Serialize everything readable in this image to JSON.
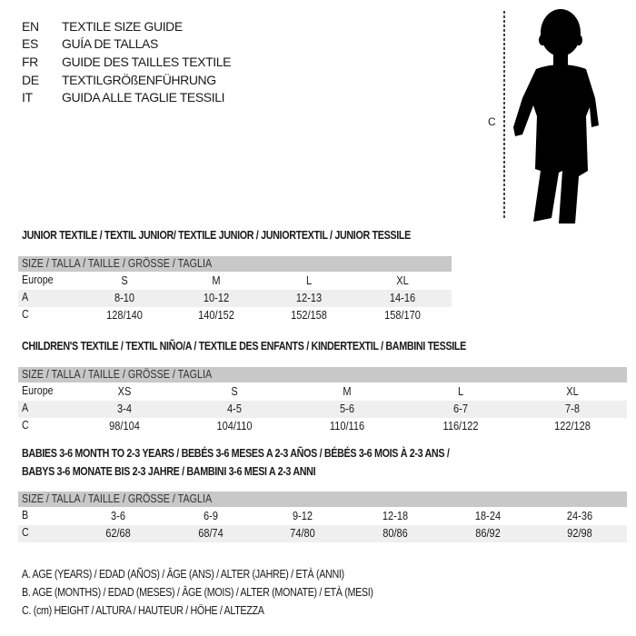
{
  "header": {
    "languages": [
      {
        "code": "EN",
        "text": "TEXTILE SIZE GUIDE"
      },
      {
        "code": "ES",
        "text": "GUÍA DE TALLAS"
      },
      {
        "code": "FR",
        "text": "GUIDE DES TAILLES TEXTILE"
      },
      {
        "code": "DE",
        "text": "TEXTILGRÖßENFÜHRUNG"
      },
      {
        "code": "IT",
        "text": "GUIDA ALLE TAGLIE TESSILI"
      }
    ]
  },
  "figure": {
    "measure_label": "C",
    "icon": "child-silhouette-icon"
  },
  "junior": {
    "title": "JUNIOR TEXTILE / TEXTIL JUNIOR/ TEXTILE JUNIOR / JUNIORTEXTIL / JUNIOR TESSILE",
    "header": "SIZE / TALLA / TAILLE / GRÖSSE / TAGLIA",
    "rows": [
      {
        "label": "Europe",
        "values": [
          "S",
          "M",
          "L",
          "XL"
        ]
      },
      {
        "label": "A",
        "values": [
          "8-10",
          "10-12",
          "12-13",
          "14-16"
        ]
      },
      {
        "label": "C",
        "values": [
          "128/140",
          "140/152",
          "152/158",
          "158/170"
        ]
      }
    ]
  },
  "children": {
    "title": "CHILDREN'S TEXTILE / TEXTIL NIÑO/A / TEXTILE DES ENFANTS / KINDERTEXTIL / BAMBINI TESSILE",
    "header": "SIZE / TALLA / TAILLE / GRÖSSE / TAGLIA",
    "rows": [
      {
        "label": "Europe",
        "values": [
          "XS",
          "S",
          "M",
          "L",
          "XL"
        ]
      },
      {
        "label": "A",
        "values": [
          "3-4",
          "4-5",
          "5-6",
          "6-7",
          "7-8"
        ]
      },
      {
        "label": "C",
        "values": [
          "98/104",
          "104/110",
          "110/116",
          "116/122",
          "122/128"
        ]
      }
    ]
  },
  "babies": {
    "title_line1": "BABIES 3-6 MONTH TO 2-3 YEARS / BEBÉS 3-6 MESES A 2-3 AÑOS / BÉBÉS 3-6 MOIS À 2-3 ANS /",
    "title_line2": "BABYS 3-6 MONATE BIS 2-3 JAHRE / BAMBINI 3-6 MESI A 2-3 ANNI",
    "header": "SIZE / TALLA / TAILLE / GRÖSSE / TAGLIA",
    "rows": [
      {
        "label": "B",
        "values": [
          "3-6",
          "6-9",
          "9-12",
          "12-18",
          "18-24",
          "24-36"
        ]
      },
      {
        "label": "C",
        "values": [
          "62/68",
          "68/74",
          "74/80",
          "80/86",
          "86/92",
          "92/98"
        ]
      }
    ]
  },
  "legend": [
    "A. AGE (YEARS) / EDAD (AÑOS) / ÂGE (ANS) / ALTER (JAHRE) / ETÀ (ANNI)",
    "B. AGE (MONTHS) / EDAD (MESES) / ÂGE (MOIS) / ALTER (MONATE) / ETÀ (MESI)",
    "C. (cm) HEIGHT / ALTURA / HAUTEUR / HÖHE / ALTEZZA"
  ]
}
